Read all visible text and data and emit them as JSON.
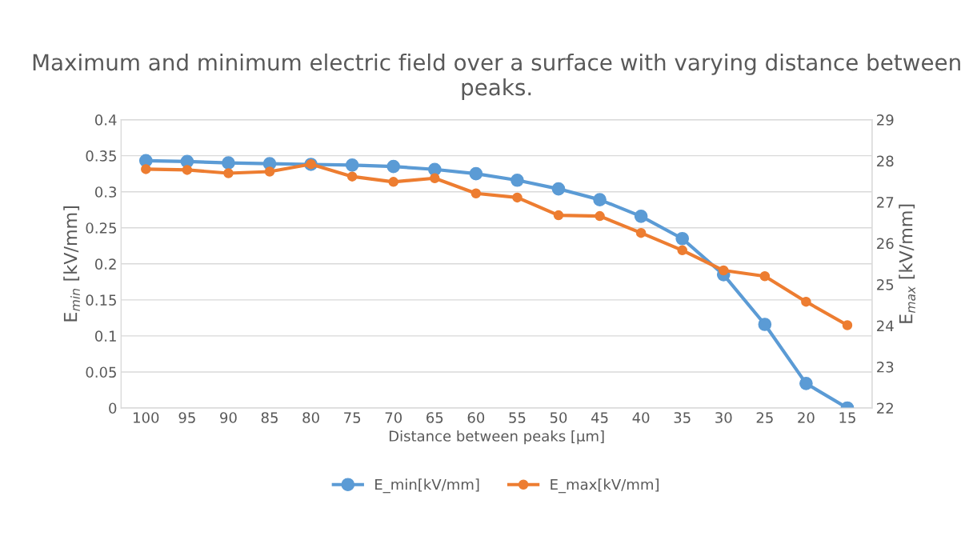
{
  "chart_data": {
    "type": "line",
    "title": "Maximum and minimum electric field over a surface with varying distance between peaks.",
    "xlabel": "Distance between peaks [µm]",
    "ylabel": "E$_{min}$ [kV/mm]",
    "y2label": "E$_{max}$ [kV/mm]",
    "categories": [
      "100",
      "95",
      "90",
      "85",
      "80",
      "75",
      "70",
      "65",
      "60",
      "55",
      "50",
      "45",
      "40",
      "35",
      "30",
      "25",
      "20",
      "15"
    ],
    "series": [
      {
        "name": "E_min[kV/mm]",
        "color": "#5b9bd5",
        "values": [
          0.343,
          0.342,
          0.34,
          0.339,
          0.338,
          0.337,
          0.335,
          0.331,
          0.325,
          0.316,
          0.304,
          0.289,
          0.266,
          0.235,
          0.185,
          0.116,
          0.034,
          0
        ]
      },
      {
        "name": "E_max[kV/mm]",
        "color": "#ed7d31",
        "axis": "y2",
        "values": [
          27.8,
          27.78,
          27.7,
          27.74,
          27.92,
          27.62,
          27.49,
          27.58,
          27.21,
          27.11,
          26.68,
          26.66,
          26.25,
          25.83,
          25.34,
          25.2,
          24.58,
          24.01
        ]
      }
    ],
    "ylim": [
      0,
      0.4
    ],
    "yticks": [
      0,
      0.05,
      0.1,
      0.15,
      0.2,
      0.25,
      0.3,
      0.35,
      0.4
    ],
    "y2lim": [
      22,
      29
    ],
    "y2ticks": [
      22,
      23,
      24,
      25,
      26,
      27,
      28,
      29
    ],
    "grid": "y",
    "legend": "bottom",
    "marker": "circle",
    "line_style": "solid"
  }
}
